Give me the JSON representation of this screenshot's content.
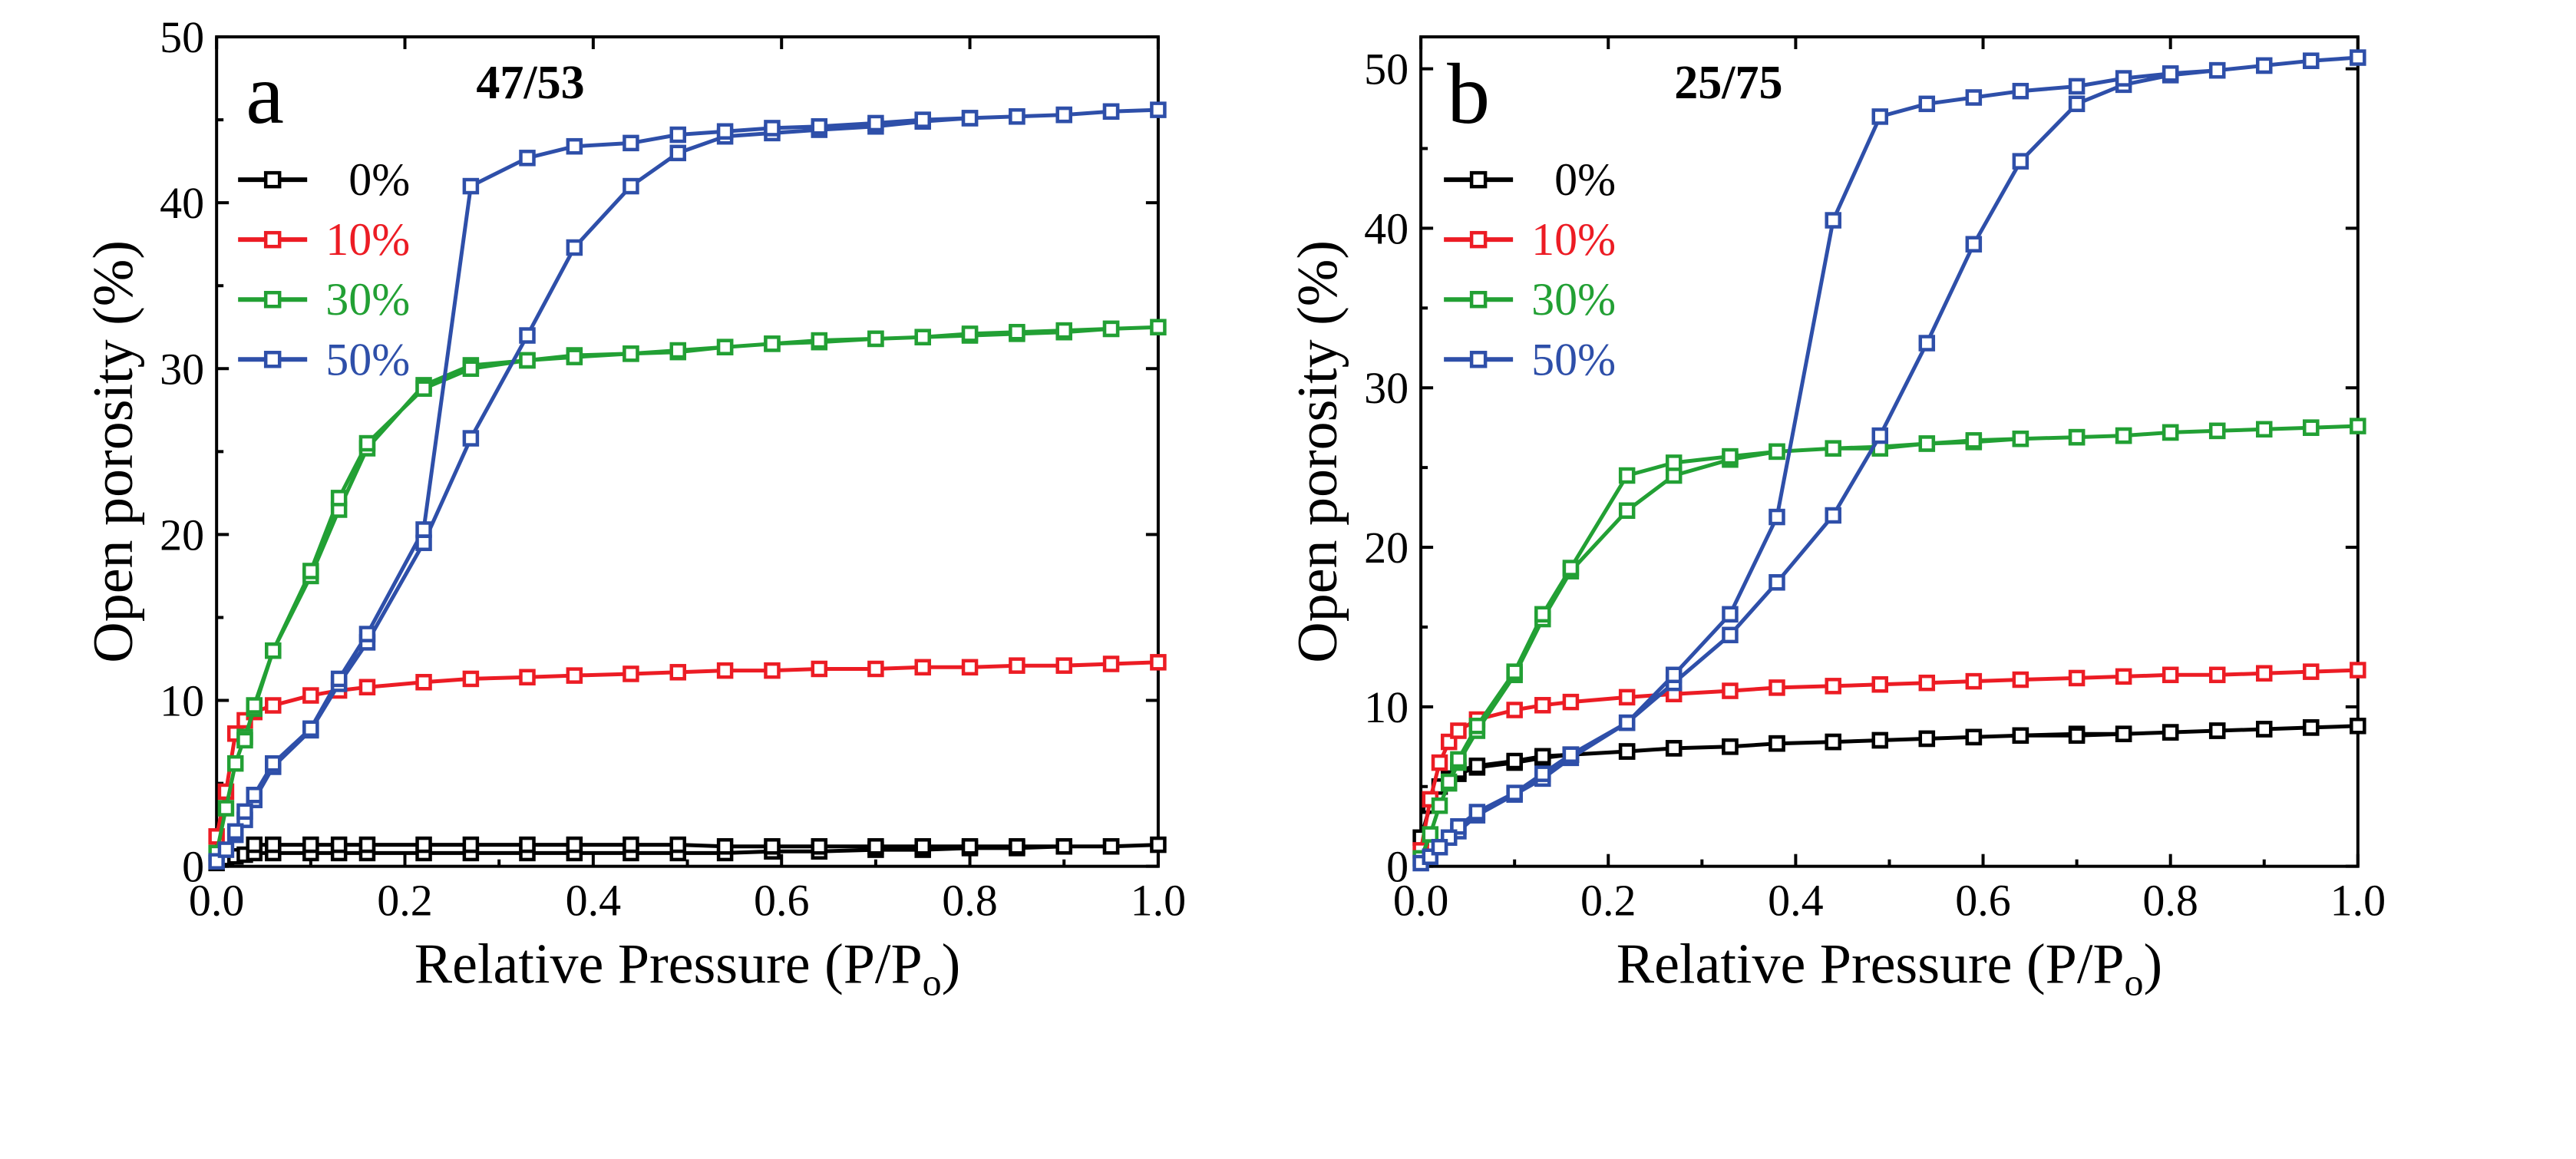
{
  "chart_data": [
    {
      "type": "line",
      "panel_letter": "a",
      "title": "47/53",
      "xlabel": "Relative Pressure (P/P",
      "xlabel_subscript": "o",
      "xlabel_close": ")",
      "ylabel": "Open porosity (%)",
      "xlim": [
        0,
        1.0
      ],
      "ylim": [
        0,
        50
      ],
      "xticks": [
        "0.0",
        "0.2",
        "0.4",
        "0.6",
        "0.8",
        "1.0"
      ],
      "xtick_values": [
        0,
        0.2,
        0.4,
        0.6,
        0.8,
        1.0
      ],
      "yticks": [
        "0",
        "10",
        "20",
        "30",
        "40",
        "50"
      ],
      "ytick_values": [
        0,
        10,
        20,
        30,
        40,
        50
      ],
      "grid": false,
      "legend_position": "upper-left",
      "series": [
        {
          "name": "0%",
          "color": "#000000",
          "x": [
            0.0,
            0.01,
            0.02,
            0.03,
            0.04,
            0.06,
            0.1,
            0.13,
            0.16,
            0.22,
            0.27,
            0.33,
            0.38,
            0.44,
            0.49,
            0.54,
            0.59,
            0.64,
            0.7,
            0.75,
            0.8,
            0.85,
            0.9,
            0.95,
            1.0,
            0.95,
            0.9,
            0.85,
            0.8,
            0.75,
            0.7,
            0.64,
            0.59,
            0.54,
            0.49,
            0.44,
            0.38,
            0.33,
            0.27,
            0.22,
            0.16,
            0.13,
            0.1,
            0.06,
            0.04
          ],
          "y": [
            0.2,
            0.5,
            0.6,
            0.7,
            0.8,
            0.8,
            0.8,
            0.8,
            0.8,
            0.8,
            0.8,
            0.8,
            0.8,
            0.8,
            0.8,
            0.8,
            0.9,
            0.9,
            1.0,
            1.0,
            1.1,
            1.1,
            1.2,
            1.2,
            1.3,
            1.2,
            1.2,
            1.2,
            1.2,
            1.2,
            1.2,
            1.2,
            1.2,
            1.2,
            1.3,
            1.3,
            1.3,
            1.3,
            1.3,
            1.3,
            1.3,
            1.3,
            1.3,
            1.3,
            1.3
          ]
        },
        {
          "name": "10%",
          "color": "#ec1c24",
          "x": [
            0.0,
            0.01,
            0.02,
            0.03,
            0.04,
            0.06,
            0.1,
            0.13,
            0.16,
            0.22,
            0.27,
            0.33,
            0.38,
            0.44,
            0.49,
            0.54,
            0.59,
            0.64,
            0.7,
            0.75,
            0.8,
            0.85,
            0.9,
            0.95,
            1.0
          ],
          "y": [
            1.8,
            4.5,
            8.0,
            8.8,
            9.3,
            9.7,
            10.3,
            10.6,
            10.8,
            11.1,
            11.3,
            11.4,
            11.5,
            11.6,
            11.7,
            11.8,
            11.8,
            11.9,
            11.9,
            12.0,
            12.0,
            12.1,
            12.1,
            12.2,
            12.3
          ]
        },
        {
          "name": "30%",
          "color": "#22a034",
          "x": [
            0.0,
            0.01,
            0.02,
            0.03,
            0.04,
            0.06,
            0.1,
            0.13,
            0.16,
            0.22,
            0.27,
            0.33,
            0.38,
            0.44,
            0.49,
            0.54,
            0.59,
            0.64,
            0.7,
            0.75,
            0.8,
            0.85,
            0.9,
            0.95,
            1.0,
            0.95,
            0.9,
            0.85,
            0.8,
            0.75,
            0.7,
            0.64,
            0.59,
            0.54,
            0.49,
            0.44,
            0.38,
            0.33,
            0.27,
            0.22,
            0.16,
            0.13,
            0.1,
            0.06,
            0.04,
            0.03
          ],
          "y": [
            0.8,
            3.5,
            6.2,
            7.8,
            9.5,
            13.0,
            17.5,
            21.5,
            25.2,
            29.0,
            30.2,
            30.5,
            30.8,
            30.9,
            31.0,
            31.3,
            31.5,
            31.6,
            31.8,
            31.9,
            32.0,
            32.1,
            32.2,
            32.4,
            32.5,
            32.4,
            32.3,
            32.2,
            32.1,
            31.9,
            31.8,
            31.7,
            31.5,
            31.3,
            31.1,
            30.9,
            30.7,
            30.5,
            30.0,
            28.8,
            25.5,
            22.2,
            17.8,
            13.0,
            9.7,
            7.6
          ]
        },
        {
          "name": "50%",
          "color": "#2e4fa9",
          "x": [
            0.0,
            0.01,
            0.02,
            0.03,
            0.04,
            0.06,
            0.1,
            0.13,
            0.16,
            0.22,
            0.27,
            0.33,
            0.38,
            0.44,
            0.49,
            0.54,
            0.59,
            0.64,
            0.7,
            0.75,
            0.8,
            0.85,
            0.9,
            0.95,
            1.0,
            0.95,
            0.9,
            0.85,
            0.8,
            0.75,
            0.7,
            0.64,
            0.59,
            0.54,
            0.49,
            0.44,
            0.38,
            0.33,
            0.27,
            0.22,
            0.16,
            0.13,
            0.1,
            0.06,
            0.04,
            0.03,
            0.02
          ],
          "y": [
            0.3,
            1.0,
            1.9,
            2.8,
            4.0,
            6.0,
            8.2,
            11.0,
            13.5,
            19.5,
            25.8,
            32.0,
            37.3,
            41.0,
            43.0,
            44.0,
            44.2,
            44.4,
            44.6,
            44.9,
            45.1,
            45.2,
            45.3,
            45.5,
            45.6,
            45.5,
            45.3,
            45.2,
            45.1,
            45.0,
            44.8,
            44.6,
            44.5,
            44.3,
            44.1,
            43.6,
            43.4,
            42.7,
            41.0,
            20.3,
            14.0,
            11.3,
            8.3,
            6.2,
            4.3,
            3.3,
            2.1
          ]
        }
      ]
    },
    {
      "type": "line",
      "panel_letter": "b",
      "title": "25/75",
      "xlabel": "Relative Pressure (P/P",
      "xlabel_subscript": "o",
      "xlabel_close": ")",
      "ylabel": "Open porosity (%)",
      "xlim": [
        0,
        1.0
      ],
      "ylim": [
        0,
        52
      ],
      "xticks": [
        "0.0",
        "0.2",
        "0.4",
        "0.6",
        "0.8",
        "1.0"
      ],
      "xtick_values": [
        0,
        0.2,
        0.4,
        0.6,
        0.8,
        1.0
      ],
      "yticks": [
        "0",
        "10",
        "20",
        "30",
        "40",
        "50"
      ],
      "ytick_values": [
        0,
        10,
        20,
        30,
        40,
        50
      ],
      "grid": false,
      "legend_position": "upper-left",
      "series": [
        {
          "name": "0%",
          "color": "#000000",
          "x": [
            0.0,
            0.01,
            0.02,
            0.03,
            0.04,
            0.06,
            0.1,
            0.13,
            0.16,
            0.22,
            0.27,
            0.33,
            0.38,
            0.44,
            0.49,
            0.54,
            0.59,
            0.64,
            0.7,
            0.75,
            0.8,
            0.85,
            0.9,
            0.95,
            1.0,
            0.95,
            0.9,
            0.85,
            0.8,
            0.75,
            0.7,
            0.64,
            0.59,
            0.54,
            0.49,
            0.44,
            0.38,
            0.33,
            0.27,
            0.22,
            0.16,
            0.13,
            0.1,
            0.06,
            0.04
          ],
          "y": [
            1.8,
            3.8,
            5.0,
            5.5,
            5.8,
            6.2,
            6.5,
            6.8,
            7.0,
            7.2,
            7.4,
            7.5,
            7.7,
            7.8,
            7.9,
            8.0,
            8.1,
            8.2,
            8.3,
            8.3,
            8.4,
            8.5,
            8.6,
            8.7,
            8.8,
            8.7,
            8.6,
            8.5,
            8.4,
            8.3,
            8.2,
            8.2,
            8.1,
            8.0,
            7.9,
            7.8,
            7.7,
            7.5,
            7.4,
            7.2,
            7.0,
            6.9,
            6.6,
            6.3,
            6.0
          ]
        },
        {
          "name": "10%",
          "color": "#ec1c24",
          "x": [
            0.0,
            0.01,
            0.02,
            0.03,
            0.04,
            0.06,
            0.1,
            0.13,
            0.16,
            0.22,
            0.27,
            0.33,
            0.38,
            0.44,
            0.49,
            0.54,
            0.59,
            0.64,
            0.7,
            0.75,
            0.8,
            0.85,
            0.9,
            0.95,
            1.0
          ],
          "y": [
            1.0,
            4.2,
            6.5,
            7.8,
            8.5,
            9.2,
            9.8,
            10.1,
            10.3,
            10.6,
            10.8,
            11.0,
            11.2,
            11.3,
            11.4,
            11.5,
            11.6,
            11.7,
            11.8,
            11.9,
            12.0,
            12.0,
            12.1,
            12.2,
            12.3
          ]
        },
        {
          "name": "30%",
          "color": "#22a034",
          "x": [
            0.0,
            0.01,
            0.02,
            0.03,
            0.04,
            0.06,
            0.1,
            0.13,
            0.16,
            0.22,
            0.27,
            0.33,
            0.38,
            0.44,
            0.49,
            0.54,
            0.59,
            0.64,
            0.7,
            0.75,
            0.8,
            0.85,
            0.9,
            0.95,
            1.0,
            0.95,
            0.9,
            0.85,
            0.8,
            0.75,
            0.7,
            0.64,
            0.59,
            0.54,
            0.49,
            0.44,
            0.38,
            0.33,
            0.27,
            0.22,
            0.16,
            0.13,
            0.1,
            0.06,
            0.04,
            0.03
          ],
          "y": [
            0.5,
            2.0,
            3.8,
            5.2,
            6.5,
            8.5,
            12.0,
            15.5,
            18.5,
            22.3,
            24.5,
            25.5,
            26.0,
            26.2,
            26.3,
            26.5,
            26.6,
            26.8,
            26.9,
            27.0,
            27.2,
            27.3,
            27.4,
            27.5,
            27.6,
            27.5,
            27.4,
            27.3,
            27.2,
            27.0,
            26.9,
            26.8,
            26.7,
            26.5,
            26.2,
            26.2,
            26.0,
            25.7,
            25.3,
            24.5,
            18.7,
            15.8,
            12.2,
            8.8,
            6.7,
            5.3
          ]
        },
        {
          "name": "50%",
          "color": "#2e4fa9",
          "x": [
            0.0,
            0.01,
            0.02,
            0.03,
            0.04,
            0.06,
            0.1,
            0.13,
            0.16,
            0.22,
            0.27,
            0.33,
            0.38,
            0.44,
            0.49,
            0.54,
            0.59,
            0.64,
            0.7,
            0.75,
            0.8,
            0.85,
            0.9,
            0.95,
            1.0,
            0.95,
            0.9,
            0.85,
            0.8,
            0.75,
            0.7,
            0.64,
            0.59,
            0.54,
            0.49,
            0.44,
            0.38,
            0.33,
            0.27,
            0.22,
            0.16,
            0.13,
            0.1,
            0.06,
            0.04,
            0.03,
            0.02
          ],
          "y": [
            0.2,
            0.6,
            1.2,
            1.8,
            2.2,
            3.2,
            4.5,
            5.5,
            6.8,
            9.0,
            11.5,
            14.5,
            17.8,
            22.0,
            27.0,
            32.8,
            39.0,
            44.2,
            47.8,
            49.0,
            49.6,
            49.9,
            50.2,
            50.5,
            50.7,
            50.5,
            50.2,
            49.9,
            49.7,
            49.4,
            48.9,
            48.6,
            48.2,
            47.8,
            47.0,
            40.5,
            21.9,
            15.8,
            12.0,
            9.0,
            7.0,
            5.8,
            4.6,
            3.4,
            2.5,
            1.8,
            1.2
          ]
        }
      ]
    }
  ]
}
